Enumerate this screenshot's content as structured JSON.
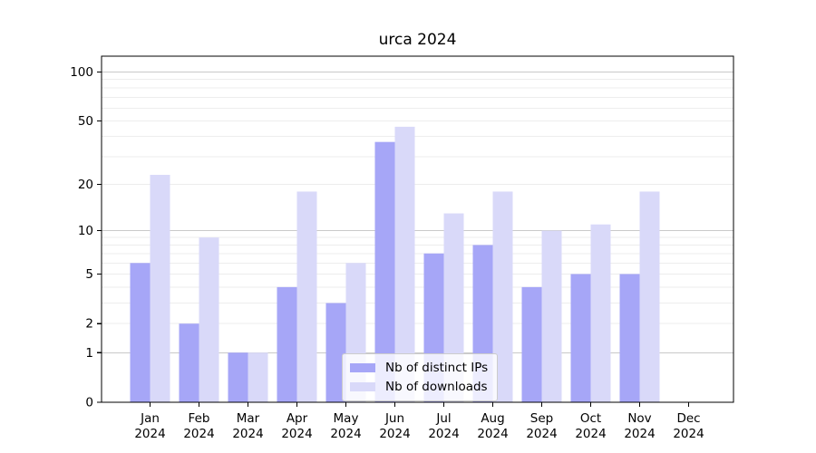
{
  "chart_data": {
    "type": "bar",
    "title": "urca 2024",
    "categories": [
      "Jan 2024",
      "Feb 2024",
      "Mar 2024",
      "Apr 2024",
      "May 2024",
      "Jun 2024",
      "Jul 2024",
      "Aug 2024",
      "Sep 2024",
      "Oct 2024",
      "Nov 2024",
      "Dec 2024"
    ],
    "series": [
      {
        "name": "Nb of distinct IPs",
        "color": "#a6a6f7",
        "values": [
          6,
          2,
          1,
          4,
          3,
          37,
          7,
          8,
          4,
          5,
          5,
          0
        ]
      },
      {
        "name": "Nb of downloads",
        "color": "#d9d9f9",
        "values": [
          23,
          9,
          1,
          18,
          6,
          46,
          13,
          18,
          10,
          11,
          18,
          0
        ]
      }
    ],
    "yscale": "log1p",
    "ylim": [
      0,
      125
    ],
    "y_tick_labels": [
      0,
      1,
      2,
      5,
      10,
      20,
      50,
      100
    ],
    "y_major_gridlines": [
      1,
      10,
      100
    ],
    "y_minor_gridlines": [
      2,
      3,
      4,
      5,
      6,
      7,
      8,
      9,
      20,
      30,
      40,
      50,
      60,
      70,
      80,
      90
    ],
    "grid": true,
    "legend_position": "lower center inside",
    "colors": {
      "axis": "#000000",
      "text": "#000000",
      "major_grid": "#c9c9c9",
      "minor_grid": "#ededed",
      "legend_border": "#cccccc",
      "background": "#ffffff"
    }
  }
}
